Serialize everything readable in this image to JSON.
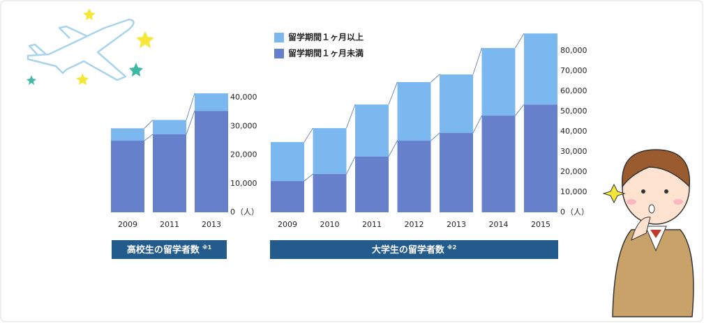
{
  "chart_data": [
    {
      "type": "stacked-bar",
      "title": "高校生の留学者数",
      "title_note": "※1",
      "y_unit": "（人）",
      "categories": [
        "2009",
        "2011",
        "2013"
      ],
      "series": [
        {
          "color": "#6680cc",
          "values": [
            25000,
            27200,
            35400
          ]
        },
        {
          "color": "#7ab8ef",
          "values": [
            4300,
            5000,
            6100
          ]
        }
      ],
      "ylim": [
        0,
        42000
      ],
      "yticks": [
        0,
        {
          "value": 10000,
          "label": "10,000"
        },
        {
          "value": 20000,
          "label": "20,000"
        },
        {
          "value": 30000,
          "label": "30,000"
        },
        {
          "value": 40000,
          "label": "40,000"
        }
      ]
    },
    {
      "type": "stacked-bar",
      "title": "大学生の留学者数",
      "title_note": "※2",
      "y_unit": "（人）",
      "categories": [
        "2009",
        "2010",
        "2011",
        "2012",
        "2013",
        "2014",
        "2015"
      ],
      "series": [
        {
          "name": "留学期間１ヶ月未満",
          "color": "#6680cc",
          "values": [
            15500,
            19000,
            27600,
            35500,
            39300,
            47900,
            53400
          ]
        },
        {
          "name": "留学期間１ヶ月以上",
          "color": "#7ab8ef",
          "values": [
            19300,
            22700,
            25800,
            29000,
            29000,
            33500,
            35200
          ]
        }
      ],
      "ylim": [
        0,
        90000
      ],
      "yticks": [
        0,
        {
          "value": 10000,
          "label": "10,000"
        },
        {
          "value": 20000,
          "label": "20,000"
        },
        {
          "value": 30000,
          "label": "30,000"
        },
        {
          "value": 40000,
          "label": "40,000"
        },
        {
          "value": 50000,
          "label": "50,000"
        },
        {
          "value": 60000,
          "label": "60,000"
        },
        {
          "value": 70000,
          "label": "70,000"
        },
        {
          "value": 80000,
          "label": "80,000"
        }
      ]
    }
  ]
}
